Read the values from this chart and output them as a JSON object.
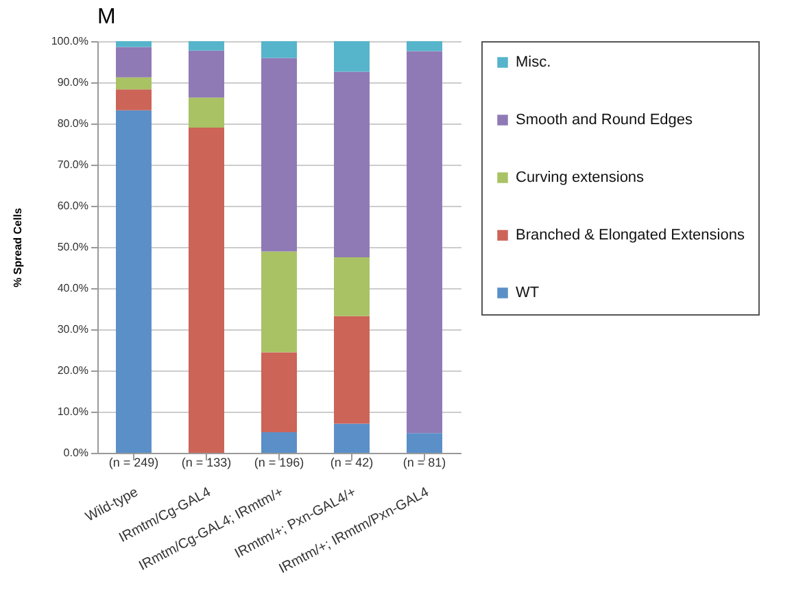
{
  "chart_data": {
    "type": "bar",
    "title": "M",
    "ylabel": "% Spread Cells",
    "stacked": true,
    "grid": "y",
    "legend": "right",
    "categories": [
      "Wild-type",
      "IRmtm/Cg-GAL4",
      "IRmtm/Cg-GAL4; IRmtm/+",
      "IRmtm/+; Pxn-GAL4/+",
      "IRmtm/+; IRmtm/Pxn-GAL4"
    ],
    "series": [
      {
        "name": "WT",
        "color": "#5b8fc7",
        "values": [
          83.2,
          0,
          5.0,
          7.1,
          4.8
        ]
      },
      {
        "name": "Branched & Elongated Extensions",
        "color": "#cc6458",
        "values": [
          5.1,
          79.0,
          19.4,
          26.1,
          0
        ]
      },
      {
        "name": "Curving extensions",
        "color": "#a9c264",
        "values": [
          2.9,
          7.3,
          24.5,
          14.3,
          0
        ]
      },
      {
        "name": "Smooth and Round Edges",
        "color": "#8f7ab5",
        "values": [
          7.4,
          11.4,
          47.0,
          45.1,
          92.8
        ]
      },
      {
        "name": "Misc.",
        "color": "#56b4cb",
        "values": [
          1.4,
          2.3,
          4.1,
          7.4,
          2.4
        ]
      }
    ],
    "ylim": [
      0,
      100
    ],
    "yticks": [
      {
        "value": 0,
        "label": "0.0%"
      },
      {
        "value": 10,
        "label": "10.0%"
      },
      {
        "value": 20,
        "label": "20.0%"
      },
      {
        "value": 30,
        "label": "30.0%"
      },
      {
        "value": 40,
        "label": "40.0%"
      },
      {
        "value": 50,
        "label": "50.0%"
      },
      {
        "value": 60,
        "label": "60.0%"
      },
      {
        "value": 70,
        "label": "70.0%"
      },
      {
        "value": 80,
        "label": "80.0%"
      },
      {
        "value": 90,
        "label": "90.0%"
      },
      {
        "value": 100,
        "label": "100.0%"
      }
    ],
    "annotations": [
      "(n = 249)",
      "(n = 133)",
      "(n = 196)",
      "(n = 42)",
      "(n = 81)"
    ]
  }
}
